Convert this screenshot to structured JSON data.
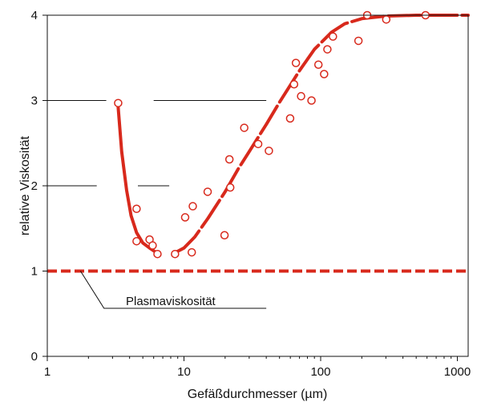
{
  "chart_data": {
    "type": "scatter",
    "xlabel": "Gefäßdurchmesser (µm)",
    "ylabel": "relative Viskosität",
    "xscale": "log",
    "xlim": [
      1,
      1200
    ],
    "ylim": [
      0,
      4
    ],
    "x_ticks": [
      {
        "value": 1,
        "label": "1"
      },
      {
        "value": 10,
        "label": "10"
      },
      {
        "value": 100,
        "label": "100"
      },
      {
        "value": 1000,
        "label": "1000"
      }
    ],
    "y_ticks": [
      {
        "value": 0,
        "label": "0"
      },
      {
        "value": 1,
        "label": "1"
      },
      {
        "value": 2,
        "label": "2"
      },
      {
        "value": 3,
        "label": "3"
      },
      {
        "value": 4,
        "label": "4"
      }
    ],
    "grid": false,
    "points": [
      {
        "x": 3.3,
        "y": 2.97
      },
      {
        "x": 4.5,
        "y": 1.73
      },
      {
        "x": 4.5,
        "y": 1.35
      },
      {
        "x": 5.6,
        "y": 1.37
      },
      {
        "x": 5.9,
        "y": 1.3
      },
      {
        "x": 6.4,
        "y": 1.2
      },
      {
        "x": 8.6,
        "y": 1.2
      },
      {
        "x": 10.2,
        "y": 1.63
      },
      {
        "x": 11.4,
        "y": 1.22
      },
      {
        "x": 11.6,
        "y": 1.76
      },
      {
        "x": 14.9,
        "y": 1.93
      },
      {
        "x": 19.8,
        "y": 1.42
      },
      {
        "x": 21.5,
        "y": 2.31
      },
      {
        "x": 21.8,
        "y": 1.98
      },
      {
        "x": 27.6,
        "y": 2.68
      },
      {
        "x": 34.9,
        "y": 2.49
      },
      {
        "x": 41.8,
        "y": 2.41
      },
      {
        "x": 59.8,
        "y": 2.79
      },
      {
        "x": 63.9,
        "y": 3.19
      },
      {
        "x": 65.9,
        "y": 3.44
      },
      {
        "x": 71.9,
        "y": 3.05
      },
      {
        "x": 85.7,
        "y": 3.0
      },
      {
        "x": 96.3,
        "y": 3.42
      },
      {
        "x": 106,
        "y": 3.31
      },
      {
        "x": 112,
        "y": 3.6
      },
      {
        "x": 123,
        "y": 3.75
      },
      {
        "x": 189,
        "y": 3.7
      },
      {
        "x": 219,
        "y": 4.0
      },
      {
        "x": 302,
        "y": 3.95
      },
      {
        "x": 585,
        "y": 4.0
      }
    ],
    "curves": [
      {
        "style": "solid",
        "points": [
          [
            3.3,
            2.92
          ],
          [
            3.5,
            2.4
          ],
          [
            3.8,
            1.95
          ],
          [
            4.1,
            1.65
          ],
          [
            4.5,
            1.45
          ],
          [
            5.0,
            1.33
          ],
          [
            5.6,
            1.27
          ],
          [
            6.1,
            1.23
          ]
        ]
      },
      {
        "style": "dashed",
        "points": [
          [
            8.7,
            1.22
          ],
          [
            10,
            1.27
          ],
          [
            12,
            1.4
          ],
          [
            15,
            1.62
          ],
          [
            20,
            1.93
          ],
          [
            25,
            2.2
          ],
          [
            30,
            2.4
          ],
          [
            40,
            2.72
          ],
          [
            50,
            2.98
          ],
          [
            60,
            3.18
          ],
          [
            70,
            3.35
          ],
          [
            90,
            3.6
          ],
          [
            120,
            3.8
          ],
          [
            150,
            3.9
          ],
          [
            200,
            3.96
          ],
          [
            300,
            3.99
          ],
          [
            500,
            4.0
          ],
          [
            1200,
            4.0
          ]
        ]
      }
    ],
    "reference_line": {
      "y": 1,
      "style": "dashed",
      "label": "Plasmaviskosität"
    },
    "guide_lines": [
      {
        "y": 3.0,
        "segments": [
          [
            1,
            2.7
          ],
          [
            6,
            40
          ]
        ]
      },
      {
        "y": 2.0,
        "segments": [
          [
            1,
            2.3
          ],
          [
            4.6,
            7.8
          ]
        ]
      }
    ],
    "colors": {
      "data": "#d8291c",
      "axis": "#111111",
      "background": "#ffffff"
    }
  }
}
